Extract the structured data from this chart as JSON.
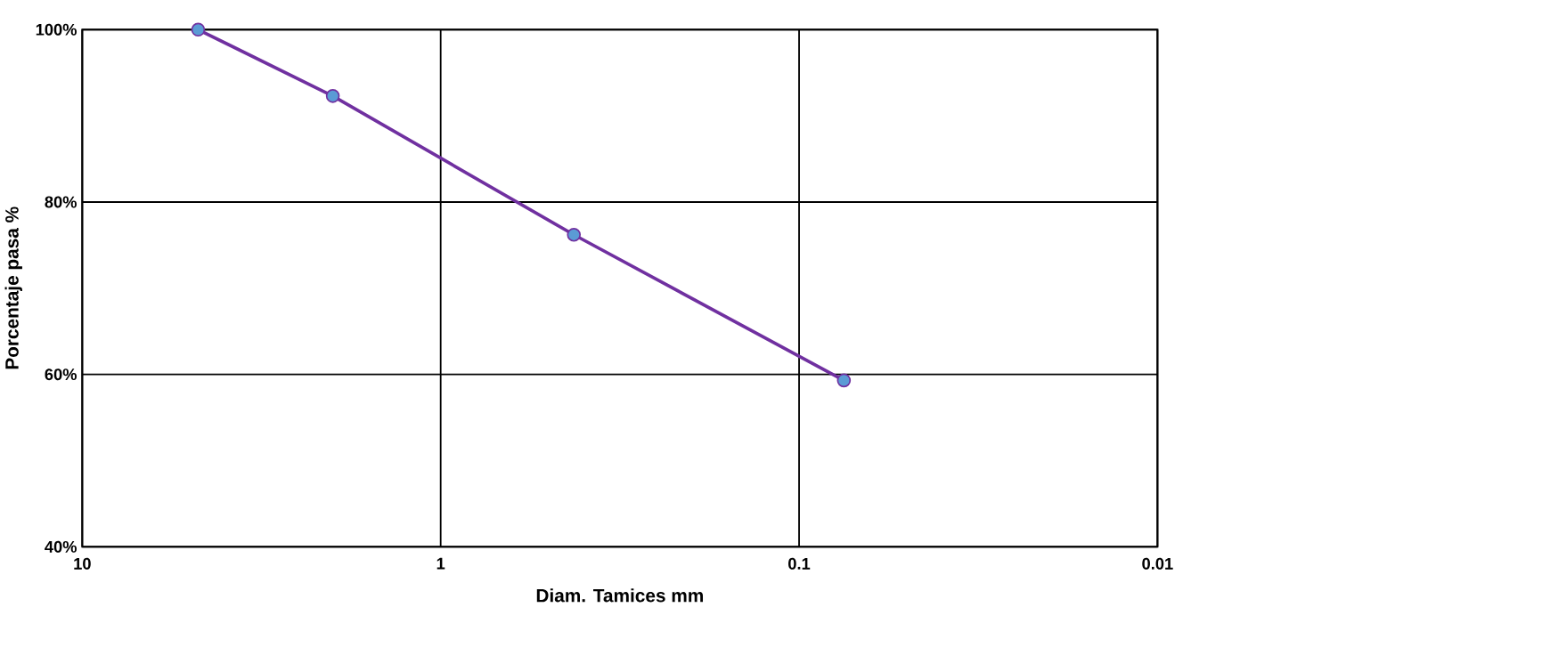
{
  "chart_data": {
    "type": "line",
    "xlabel": "Diam. Tamices mm",
    "ylabel": "Porcentaje pasa %",
    "log": "x",
    "grid": true,
    "marker": "circle",
    "line_style": "solid",
    "xlim": [
      10,
      0.01
    ],
    "xticks": [
      10,
      1,
      0.1,
      0.01
    ],
    "ylim": [
      40,
      100
    ],
    "yticks": [
      {
        "value": 40,
        "label": "40%"
      },
      {
        "value": 60,
        "label": "60%"
      },
      {
        "value": 80,
        "label": "80%"
      },
      {
        "value": 100,
        "label": "100%"
      }
    ],
    "series": [
      {
        "color": "#7030a0",
        "x": [
          4.75,
          2.0,
          0.425,
          0.075
        ],
        "values": [
          100,
          92.3,
          76.2,
          59.3
        ]
      }
    ]
  }
}
